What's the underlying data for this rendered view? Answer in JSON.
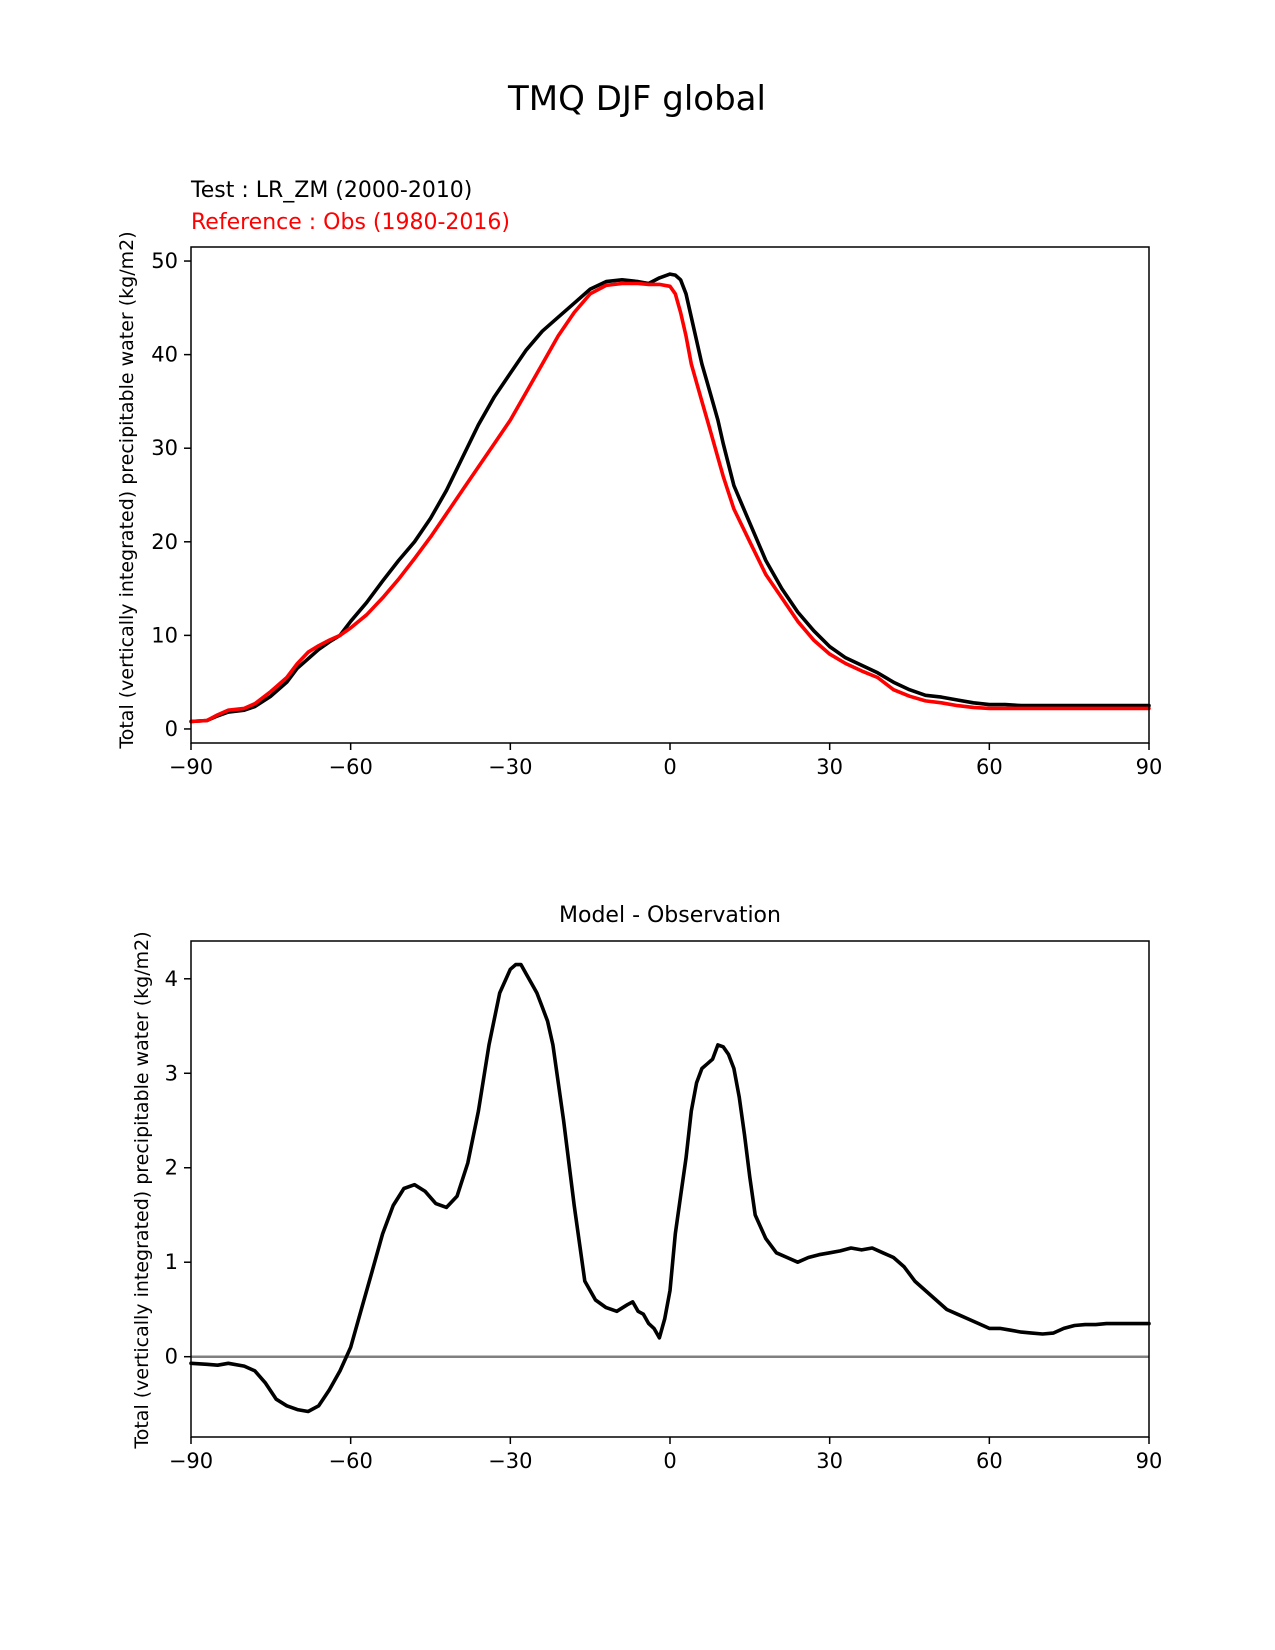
{
  "figure": {
    "title": "TMQ DJF global"
  },
  "panels": {
    "top": {
      "test_label": "Test : LR_ZM (2000-2010)",
      "reference_label": "Reference : Obs (1980-2016)"
    },
    "bottom": {
      "title": "Model - Observation"
    }
  },
  "colors": {
    "test": "#000000",
    "reference": "#ff0000",
    "zero_line": "#808080"
  },
  "chart_data": [
    {
      "type": "line",
      "xlabel": "",
      "ylabel": "Total (vertically integrated) precipitable water (kg/m2)",
      "xlim": [
        -90,
        90
      ],
      "ylim": [
        -1.5,
        51.5
      ],
      "xticks": [
        -90,
        -60,
        -30,
        0,
        30,
        60,
        90
      ],
      "xtick_labels": [
        "−90",
        "−60",
        "−30",
        "0",
        "30",
        "60",
        "90"
      ],
      "yticks": [
        0,
        10,
        20,
        30,
        40,
        50
      ],
      "ytick_labels": [
        "0",
        "10",
        "20",
        "30",
        "40",
        "50"
      ],
      "grid": false,
      "series": [
        {
          "role": "test",
          "x": [
            -90,
            -87,
            -85,
            -83,
            -80,
            -78,
            -75,
            -72,
            -70,
            -68,
            -66,
            -64,
            -62,
            -60,
            -57,
            -54,
            -51,
            -48,
            -45,
            -42,
            -39,
            -36,
            -33,
            -30,
            -27,
            -24,
            -21,
            -18,
            -15,
            -12,
            -9,
            -6,
            -4,
            -2,
            0,
            1,
            2,
            3,
            4,
            5,
            6,
            7,
            8,
            9,
            10,
            12,
            15,
            18,
            21,
            24,
            27,
            30,
            33,
            36,
            39,
            42,
            45,
            48,
            51,
            54,
            57,
            60,
            63,
            66,
            69,
            72,
            75,
            78,
            81,
            84,
            87,
            90
          ],
          "y": [
            0.8,
            0.9,
            1.4,
            1.8,
            2.0,
            2.4,
            3.5,
            5.0,
            6.5,
            7.5,
            8.5,
            9.3,
            10.0,
            11.5,
            13.5,
            15.8,
            18.0,
            20.0,
            22.5,
            25.5,
            29.0,
            32.5,
            35.5,
            38.0,
            40.5,
            42.5,
            44.0,
            45.5,
            47.0,
            47.8,
            48.0,
            47.8,
            47.6,
            48.2,
            48.6,
            48.5,
            48.0,
            46.5,
            44.0,
            41.5,
            39.0,
            37.0,
            35.0,
            33.0,
            30.5,
            26.0,
            22.0,
            18.0,
            15.0,
            12.5,
            10.5,
            8.8,
            7.6,
            6.8,
            6.0,
            5.0,
            4.2,
            3.6,
            3.4,
            3.1,
            2.8,
            2.6,
            2.6,
            2.5,
            2.5,
            2.5,
            2.5,
            2.5,
            2.5,
            2.5,
            2.5,
            2.5
          ]
        },
        {
          "role": "reference",
          "x": [
            -90,
            -87,
            -85,
            -83,
            -80,
            -78,
            -75,
            -72,
            -70,
            -68,
            -66,
            -64,
            -62,
            -60,
            -57,
            -54,
            -51,
            -48,
            -45,
            -42,
            -39,
            -36,
            -33,
            -30,
            -27,
            -24,
            -21,
            -18,
            -15,
            -12,
            -9,
            -6,
            -4,
            -2,
            0,
            1,
            2,
            3,
            4,
            5,
            6,
            7,
            8,
            9,
            10,
            12,
            15,
            18,
            21,
            24,
            27,
            30,
            33,
            36,
            39,
            42,
            45,
            48,
            51,
            54,
            57,
            60,
            63,
            66,
            69,
            72,
            75,
            78,
            81,
            84,
            87,
            90
          ],
          "y": [
            0.8,
            0.9,
            1.5,
            2.0,
            2.2,
            2.7,
            4.0,
            5.5,
            7.0,
            8.2,
            8.9,
            9.5,
            10.0,
            10.8,
            12.2,
            14.0,
            16.0,
            18.2,
            20.5,
            23.0,
            25.5,
            28.0,
            30.5,
            33.0,
            36.0,
            39.0,
            42.0,
            44.5,
            46.5,
            47.4,
            47.6,
            47.6,
            47.5,
            47.5,
            47.3,
            46.5,
            44.5,
            42.0,
            39.0,
            37.0,
            35.0,
            33.0,
            31.0,
            29.0,
            27.0,
            23.5,
            20.0,
            16.5,
            14.0,
            11.5,
            9.5,
            8.0,
            7.0,
            6.2,
            5.5,
            4.2,
            3.5,
            3.0,
            2.8,
            2.5,
            2.3,
            2.2,
            2.2,
            2.2,
            2.2,
            2.2,
            2.2,
            2.2,
            2.2,
            2.2,
            2.2,
            2.2
          ]
        }
      ]
    },
    {
      "type": "line",
      "title": "Model - Observation",
      "xlabel": "",
      "ylabel": "Total (vertically integrated) precipitable water (kg/m2)",
      "xlim": [
        -90,
        90
      ],
      "ylim": [
        -0.85,
        4.4
      ],
      "xticks": [
        -90,
        -60,
        -30,
        0,
        30,
        60,
        90
      ],
      "xtick_labels": [
        "−90",
        "−60",
        "−30",
        "0",
        "30",
        "60",
        "90"
      ],
      "yticks": [
        0,
        1,
        2,
        3,
        4
      ],
      "ytick_labels": [
        "0",
        "1",
        "2",
        "3",
        "4"
      ],
      "grid": false,
      "reference_line_y": 0,
      "series": [
        {
          "role": "difference",
          "x": [
            -90,
            -87,
            -85,
            -83,
            -80,
            -78,
            -76,
            -74,
            -72,
            -70,
            -68,
            -66,
            -64,
            -62,
            -60,
            -58,
            -56,
            -54,
            -52,
            -50,
            -48,
            -46,
            -44,
            -42,
            -40,
            -38,
            -36,
            -34,
            -32,
            -30,
            -29,
            -28,
            -27,
            -26,
            -25,
            -24,
            -23,
            -22,
            -20,
            -18,
            -16,
            -14,
            -12,
            -10,
            -8,
            -7,
            -6,
            -5,
            -4,
            -3,
            -2,
            -1,
            0,
            1,
            2,
            3,
            4,
            5,
            6,
            7,
            8,
            9,
            10,
            11,
            12,
            13,
            14,
            15,
            16,
            18,
            20,
            22,
            24,
            26,
            28,
            30,
            32,
            34,
            36,
            38,
            40,
            42,
            44,
            46,
            48,
            50,
            52,
            54,
            56,
            58,
            60,
            62,
            64,
            66,
            68,
            70,
            72,
            74,
            76,
            78,
            80,
            82,
            84,
            86,
            88,
            90
          ],
          "y": [
            -0.07,
            -0.08,
            -0.09,
            -0.07,
            -0.1,
            -0.15,
            -0.28,
            -0.45,
            -0.52,
            -0.56,
            -0.58,
            -0.52,
            -0.35,
            -0.15,
            0.1,
            0.5,
            0.9,
            1.3,
            1.6,
            1.78,
            1.82,
            1.75,
            1.62,
            1.58,
            1.7,
            2.05,
            2.6,
            3.3,
            3.85,
            4.1,
            4.15,
            4.15,
            4.05,
            3.95,
            3.85,
            3.7,
            3.55,
            3.3,
            2.5,
            1.6,
            0.8,
            0.6,
            0.52,
            0.48,
            0.55,
            0.58,
            0.48,
            0.45,
            0.35,
            0.3,
            0.2,
            0.4,
            0.7,
            1.3,
            1.7,
            2.1,
            2.6,
            2.9,
            3.05,
            3.1,
            3.15,
            3.3,
            3.28,
            3.2,
            3.05,
            2.75,
            2.35,
            1.9,
            1.5,
            1.25,
            1.1,
            1.05,
            1.0,
            1.05,
            1.08,
            1.1,
            1.12,
            1.15,
            1.13,
            1.15,
            1.1,
            1.05,
            0.95,
            0.8,
            0.7,
            0.6,
            0.5,
            0.45,
            0.4,
            0.35,
            0.3,
            0.3,
            0.28,
            0.26,
            0.25,
            0.24,
            0.25,
            0.3,
            0.33,
            0.34,
            0.34,
            0.35,
            0.35,
            0.35,
            0.35,
            0.35
          ]
        }
      ]
    }
  ]
}
